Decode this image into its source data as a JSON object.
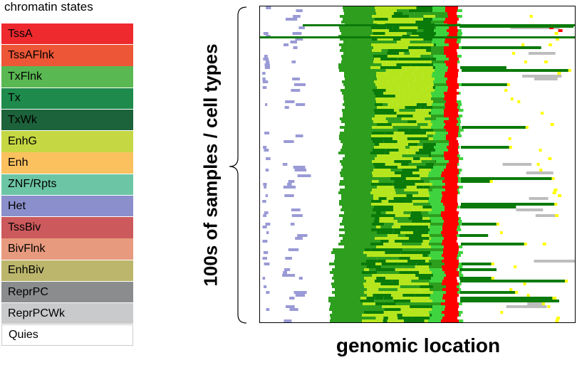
{
  "legend": {
    "title": "chromatin states",
    "items": [
      {
        "label": "TssA",
        "color": "#ee2a2f"
      },
      {
        "label": "TssAFlnk",
        "color": "#ed5637"
      },
      {
        "label": "TxFlnk",
        "color": "#5ab853"
      },
      {
        "label": "Tx",
        "color": "#1e8a4c"
      },
      {
        "label": "TxWk",
        "color": "#1c623a"
      },
      {
        "label": "EnhG",
        "color": "#c5d843"
      },
      {
        "label": "Enh",
        "color": "#fbc15f"
      },
      {
        "label": "ZNF/Rpts",
        "color": "#6cc6a6"
      },
      {
        "label": "Het",
        "color": "#8b8fcb"
      },
      {
        "label": "TssBiv",
        "color": "#cc5a5d"
      },
      {
        "label": "BivFlnk",
        "color": "#e89a7e"
      },
      {
        "label": "EnhBiv",
        "color": "#bcb66c"
      },
      {
        "label": "ReprPC",
        "color": "#8b8c8e"
      },
      {
        "label": "ReprPCWk",
        "color": "#c9cacb"
      },
      {
        "label": "Quies",
        "color": "#ffffff"
      }
    ]
  },
  "axes": {
    "ylabel": "100s of samples / cell types",
    "xlabel": "genomic location"
  },
  "heatmap_colors": {
    "dark_green": "#0a7a0a",
    "mid_green": "#2e9e1e",
    "light_green": "#3fd43f",
    "yellow_green": "#b5e61d",
    "yellow": "#ffff00",
    "red": "#ff0000",
    "gray": "#bdbdbd",
    "lavender": "#9a9ad6"
  }
}
